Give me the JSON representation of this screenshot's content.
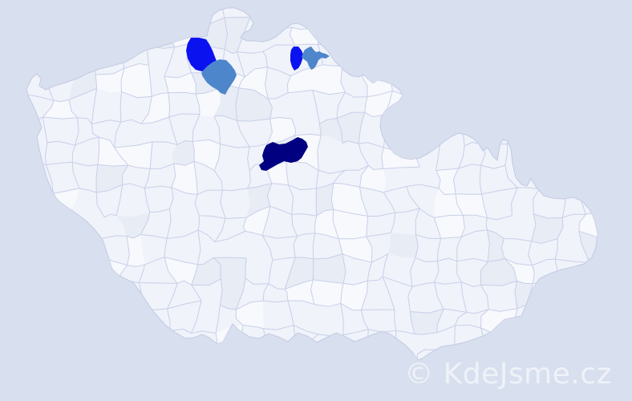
{
  "watermark": {
    "text": "© KdeJsme.cz",
    "color": "#ffffff",
    "opacity": "0.6"
  },
  "palette": {
    "background": "#d8dfee",
    "land": "#f0f3fa",
    "district_border": "#c8cfe8",
    "country_outline": "#c3cae3",
    "cell_light_patch": "rgba(255,255,255,0.5)",
    "cell_dark_patch": "rgba(186,196,224,0.16)"
  },
  "chart_data": {
    "type": "choropleth-map",
    "area": "Czech Republic",
    "subdivision": "districts",
    "legend_visible": false,
    "color_scale": [
      {
        "level": "highest",
        "color": "#000080"
      },
      {
        "level": "high",
        "color": "#0b12f0"
      },
      {
        "level": "medium",
        "color": "#4e86cb"
      },
      {
        "level": "none",
        "color": "#f0f3fa"
      }
    ],
    "highlighted_districts": [
      {
        "id": "district-northwest-bright",
        "position": "north-west",
        "level": "high",
        "color": "#0b12f0"
      },
      {
        "id": "district-northwest-medium",
        "position": "north-west, south-east of #1",
        "level": "medium",
        "color": "#4e86cb"
      },
      {
        "id": "district-north-bright",
        "position": "north-central",
        "level": "high",
        "color": "#0b12f0"
      },
      {
        "id": "district-north-medium",
        "position": "north-central, east of #3",
        "level": "medium",
        "color": "#4e86cb"
      },
      {
        "id": "district-central-dark",
        "position": "central",
        "level": "highest",
        "color": "#000080"
      }
    ]
  }
}
